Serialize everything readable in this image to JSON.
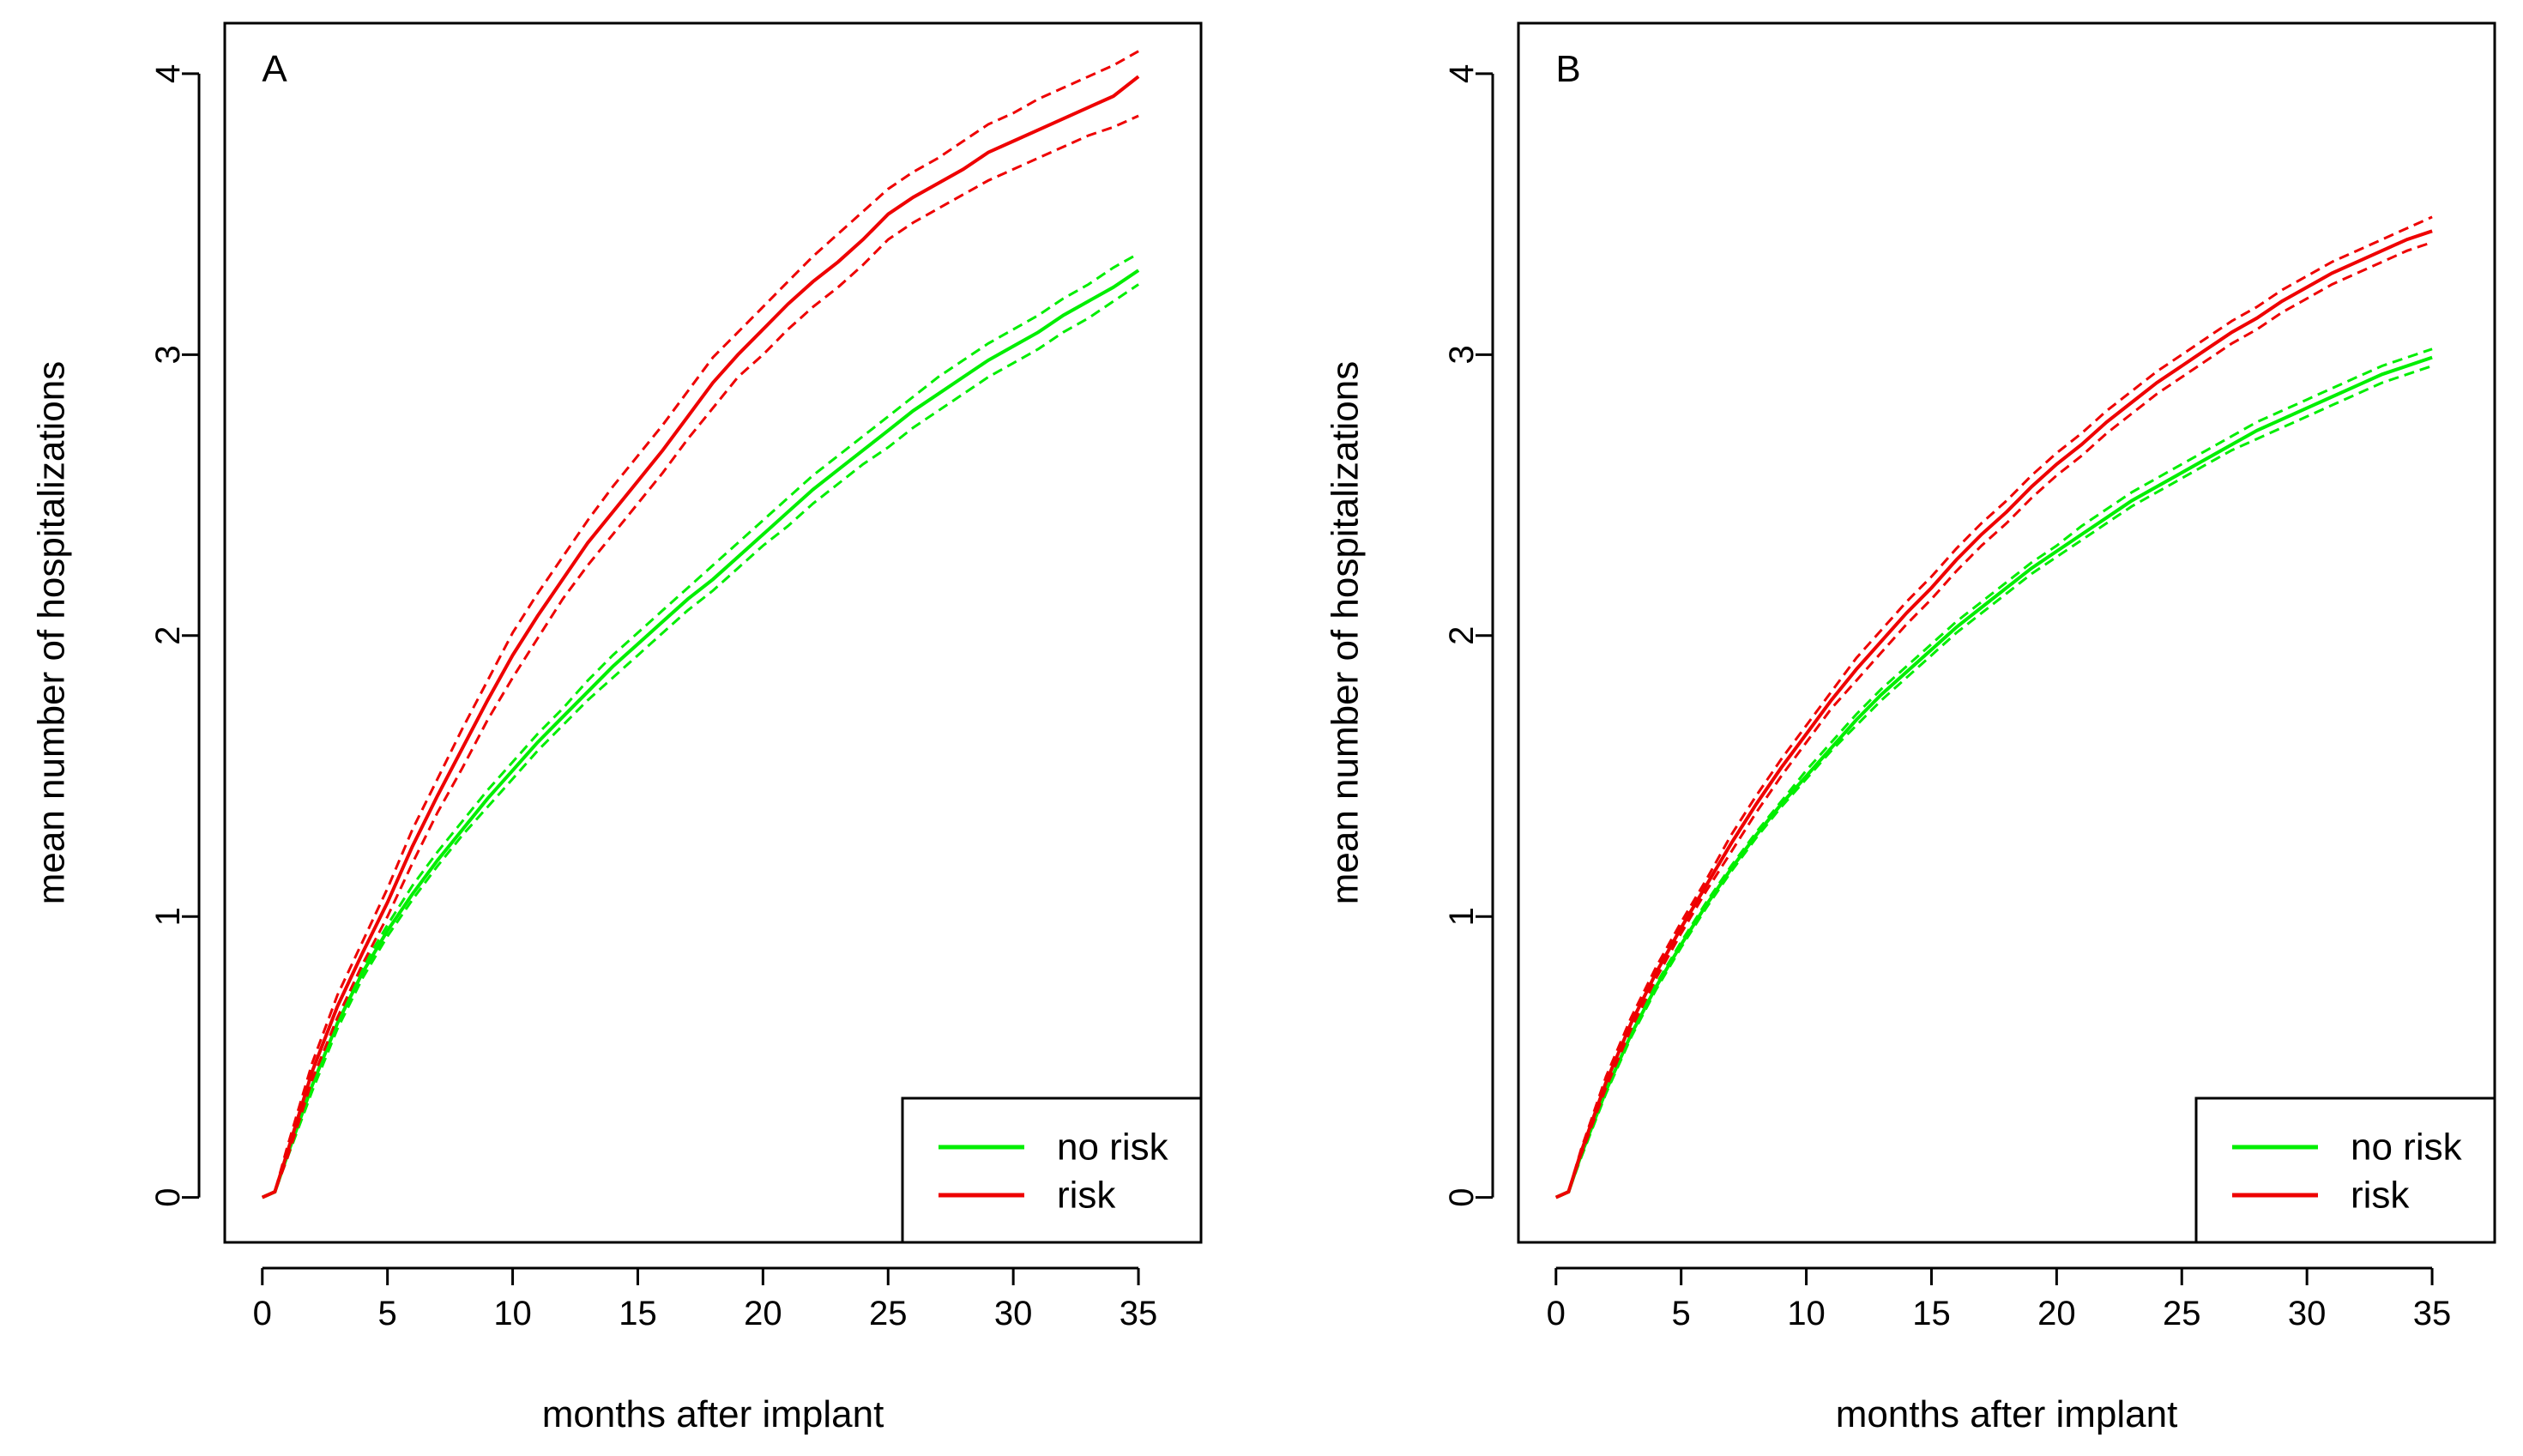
{
  "chart_data": [
    {
      "type": "line",
      "panel_label": "A",
      "xlabel": "months after implant",
      "ylabel": "mean number of hospitalizations",
      "xlim": [
        -1.5,
        37.5
      ],
      "ylim": [
        -0.16,
        4.18
      ],
      "xticks": [
        0,
        5,
        10,
        15,
        20,
        25,
        30,
        35
      ],
      "yticks": [
        0,
        1,
        2,
        3,
        4
      ],
      "legend": {
        "position": "bottom-right",
        "entries": [
          "no risk",
          "risk"
        ]
      },
      "series": [
        {
          "name": "no risk",
          "color": "#00ee00",
          "x": [
            0,
            0.5,
            1,
            2,
            3,
            4,
            5,
            6,
            7,
            8,
            9,
            10,
            11,
            12,
            13,
            14,
            15,
            16,
            17,
            18,
            19,
            20,
            21,
            22,
            23,
            24,
            25,
            26,
            27,
            28,
            29,
            30,
            31,
            32,
            33,
            34,
            35
          ],
          "y": [
            0,
            0.02,
            0.15,
            0.4,
            0.62,
            0.8,
            0.95,
            1.08,
            1.2,
            1.31,
            1.42,
            1.52,
            1.62,
            1.71,
            1.8,
            1.89,
            1.97,
            2.05,
            2.13,
            2.2,
            2.28,
            2.36,
            2.44,
            2.52,
            2.59,
            2.66,
            2.73,
            2.8,
            2.86,
            2.92,
            2.98,
            3.03,
            3.08,
            3.14,
            3.19,
            3.24,
            3.3
          ],
          "ci_lower": [
            0,
            0.02,
            0.14,
            0.38,
            0.6,
            0.78,
            0.93,
            1.06,
            1.18,
            1.29,
            1.39,
            1.49,
            1.59,
            1.68,
            1.77,
            1.85,
            1.93,
            2.01,
            2.09,
            2.16,
            2.24,
            2.32,
            2.39,
            2.47,
            2.54,
            2.61,
            2.67,
            2.74,
            2.8,
            2.86,
            2.92,
            2.97,
            3.02,
            3.08,
            3.13,
            3.19,
            3.25
          ],
          "ci_upper": [
            0,
            0.02,
            0.16,
            0.42,
            0.64,
            0.82,
            0.97,
            1.11,
            1.23,
            1.34,
            1.45,
            1.55,
            1.65,
            1.74,
            1.84,
            1.93,
            2.01,
            2.09,
            2.17,
            2.25,
            2.33,
            2.41,
            2.49,
            2.57,
            2.64,
            2.71,
            2.78,
            2.85,
            2.92,
            2.98,
            3.04,
            3.09,
            3.14,
            3.2,
            3.25,
            3.31,
            3.36
          ]
        },
        {
          "name": "risk",
          "color": "#ee0000",
          "x": [
            0,
            0.5,
            1,
            2,
            3,
            4,
            5,
            6,
            7,
            8,
            9,
            10,
            11,
            12,
            13,
            14,
            15,
            16,
            17,
            18,
            19,
            20,
            21,
            22,
            23,
            24,
            25,
            26,
            27,
            28,
            29,
            30,
            31,
            32,
            33,
            34,
            35
          ],
          "y": [
            0,
            0.02,
            0.16,
            0.45,
            0.68,
            0.87,
            1.05,
            1.25,
            1.43,
            1.6,
            1.77,
            1.93,
            2.07,
            2.2,
            2.33,
            2.44,
            2.55,
            2.66,
            2.78,
            2.9,
            3.0,
            3.09,
            3.18,
            3.26,
            3.33,
            3.41,
            3.5,
            3.56,
            3.61,
            3.66,
            3.72,
            3.76,
            3.8,
            3.84,
            3.88,
            3.92,
            3.99
          ],
          "ci_lower": [
            0,
            0.02,
            0.14,
            0.42,
            0.64,
            0.83,
            1.0,
            1.19,
            1.37,
            1.53,
            1.7,
            1.85,
            1.99,
            2.13,
            2.25,
            2.36,
            2.47,
            2.58,
            2.7,
            2.81,
            2.92,
            3.0,
            3.09,
            3.17,
            3.24,
            3.32,
            3.41,
            3.47,
            3.52,
            3.57,
            3.62,
            3.66,
            3.7,
            3.74,
            3.78,
            3.81,
            3.85
          ],
          "ci_upper": [
            0,
            0.02,
            0.18,
            0.48,
            0.72,
            0.91,
            1.1,
            1.31,
            1.49,
            1.67,
            1.84,
            2.01,
            2.15,
            2.28,
            2.41,
            2.53,
            2.64,
            2.75,
            2.87,
            2.99,
            3.08,
            3.17,
            3.26,
            3.35,
            3.43,
            3.51,
            3.59,
            3.65,
            3.7,
            3.76,
            3.82,
            3.86,
            3.91,
            3.95,
            3.99,
            4.03,
            4.08
          ]
        }
      ]
    },
    {
      "type": "line",
      "panel_label": "B",
      "xlabel": "months after implant",
      "ylabel": "mean number of hospitalizations",
      "xlim": [
        -1.5,
        37.5
      ],
      "ylim": [
        -0.16,
        4.18
      ],
      "xticks": [
        0,
        5,
        10,
        15,
        20,
        25,
        30,
        35
      ],
      "yticks": [
        0,
        1,
        2,
        3,
        4
      ],
      "legend": {
        "position": "bottom-right",
        "entries": [
          "no risk",
          "risk"
        ]
      },
      "series": [
        {
          "name": "no risk",
          "color": "#00ee00",
          "x": [
            0,
            0.5,
            1,
            2,
            3,
            4,
            5,
            6,
            7,
            8,
            9,
            10,
            11,
            12,
            13,
            14,
            15,
            16,
            17,
            18,
            19,
            20,
            21,
            22,
            23,
            24,
            25,
            26,
            27,
            28,
            29,
            30,
            31,
            32,
            33,
            34,
            35
          ],
          "y": [
            0,
            0.02,
            0.15,
            0.38,
            0.58,
            0.75,
            0.9,
            1.04,
            1.17,
            1.29,
            1.4,
            1.5,
            1.6,
            1.7,
            1.79,
            1.87,
            1.95,
            2.03,
            2.1,
            2.17,
            2.24,
            2.3,
            2.36,
            2.42,
            2.48,
            2.53,
            2.58,
            2.63,
            2.68,
            2.73,
            2.77,
            2.81,
            2.85,
            2.89,
            2.93,
            2.96,
            2.99
          ],
          "ci_lower": [
            0,
            0.02,
            0.14,
            0.37,
            0.57,
            0.74,
            0.89,
            1.03,
            1.16,
            1.28,
            1.39,
            1.49,
            1.59,
            1.68,
            1.77,
            1.85,
            1.93,
            2.01,
            2.08,
            2.15,
            2.22,
            2.28,
            2.34,
            2.4,
            2.46,
            2.51,
            2.56,
            2.61,
            2.66,
            2.7,
            2.74,
            2.78,
            2.82,
            2.86,
            2.9,
            2.93,
            2.96
          ],
          "ci_upper": [
            0,
            0.02,
            0.16,
            0.39,
            0.59,
            0.76,
            0.91,
            1.05,
            1.18,
            1.3,
            1.41,
            1.52,
            1.62,
            1.72,
            1.81,
            1.89,
            1.97,
            2.05,
            2.12,
            2.19,
            2.26,
            2.32,
            2.39,
            2.45,
            2.51,
            2.56,
            2.61,
            2.66,
            2.71,
            2.76,
            2.8,
            2.84,
            2.88,
            2.92,
            2.96,
            2.99,
            3.02
          ]
        },
        {
          "name": "risk",
          "color": "#ee0000",
          "x": [
            0,
            0.5,
            1,
            2,
            3,
            4,
            5,
            6,
            7,
            8,
            9,
            10,
            11,
            12,
            13,
            14,
            15,
            16,
            17,
            18,
            19,
            20,
            21,
            22,
            23,
            24,
            25,
            26,
            27,
            28,
            29,
            30,
            31,
            32,
            33,
            34,
            35
          ],
          "y": [
            0,
            0.02,
            0.16,
            0.41,
            0.62,
            0.8,
            0.96,
            1.11,
            1.26,
            1.4,
            1.53,
            1.65,
            1.77,
            1.88,
            1.98,
            2.08,
            2.17,
            2.27,
            2.36,
            2.44,
            2.53,
            2.61,
            2.68,
            2.76,
            2.83,
            2.9,
            2.96,
            3.02,
            3.08,
            3.13,
            3.19,
            3.24,
            3.29,
            3.33,
            3.37,
            3.41,
            3.44
          ],
          "ci_lower": [
            0,
            0.02,
            0.15,
            0.39,
            0.6,
            0.78,
            0.94,
            1.09,
            1.23,
            1.37,
            1.5,
            1.62,
            1.74,
            1.84,
            1.94,
            2.04,
            2.13,
            2.23,
            2.32,
            2.4,
            2.49,
            2.57,
            2.64,
            2.72,
            2.79,
            2.86,
            2.92,
            2.98,
            3.04,
            3.09,
            3.15,
            3.2,
            3.25,
            3.29,
            3.33,
            3.37,
            3.4
          ],
          "ci_upper": [
            0,
            0.02,
            0.17,
            0.43,
            0.64,
            0.82,
            0.98,
            1.13,
            1.29,
            1.43,
            1.56,
            1.68,
            1.8,
            1.92,
            2.02,
            2.12,
            2.21,
            2.31,
            2.4,
            2.48,
            2.57,
            2.65,
            2.72,
            2.8,
            2.87,
            2.94,
            3.0,
            3.06,
            3.12,
            3.17,
            3.23,
            3.28,
            3.33,
            3.37,
            3.41,
            3.45,
            3.49
          ]
        }
      ]
    }
  ]
}
